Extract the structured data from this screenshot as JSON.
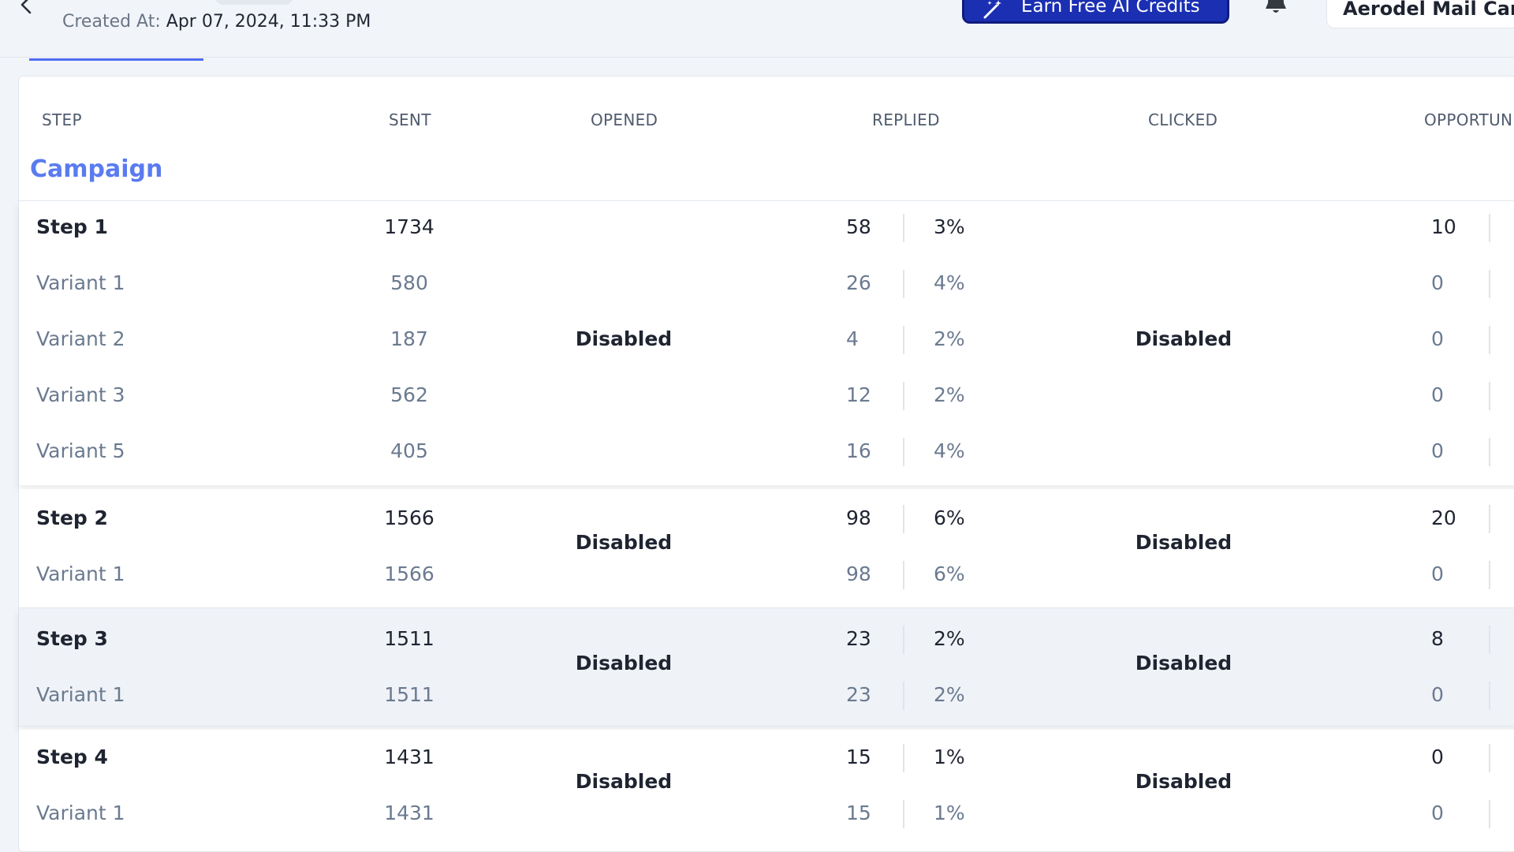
{
  "header": {
    "created_label": "Created At:",
    "created_value": "Apr 07, 2024, 11:33 PM",
    "credits_button": "Earn Free AI Credits",
    "account_name": "Aerodel Mail Cam"
  },
  "table": {
    "columns": [
      "STEP",
      "SENT",
      "OPENED",
      "REPLIED",
      "CLICKED",
      "OPPORTUN"
    ],
    "section_title": "Campaign",
    "groups": [
      {
        "opened": "Disabled",
        "clicked": "Disabled",
        "rows": [
          {
            "type": "step",
            "name": "Step 1",
            "sent": "1734",
            "replied": "58",
            "replied_pct": "3%",
            "opportunities": "10"
          },
          {
            "type": "variant",
            "name": "Variant 1",
            "sent": "580",
            "replied": "26",
            "replied_pct": "4%",
            "opportunities": "0"
          },
          {
            "type": "variant",
            "name": "Variant 2",
            "sent": "187",
            "replied": "4",
            "replied_pct": "2%",
            "opportunities": "0"
          },
          {
            "type": "variant",
            "name": "Variant 3",
            "sent": "562",
            "replied": "12",
            "replied_pct": "2%",
            "opportunities": "0"
          },
          {
            "type": "variant",
            "name": "Variant 5",
            "sent": "405",
            "replied": "16",
            "replied_pct": "4%",
            "opportunities": "0"
          }
        ]
      },
      {
        "opened": "Disabled",
        "clicked": "Disabled",
        "rows": [
          {
            "type": "step",
            "name": "Step 2",
            "sent": "1566",
            "replied": "98",
            "replied_pct": "6%",
            "opportunities": "20"
          },
          {
            "type": "variant",
            "name": "Variant 1",
            "sent": "1566",
            "replied": "98",
            "replied_pct": "6%",
            "opportunities": "0"
          }
        ]
      },
      {
        "opened": "Disabled",
        "clicked": "Disabled",
        "rows": [
          {
            "type": "step",
            "name": "Step 3",
            "sent": "1511",
            "replied": "23",
            "replied_pct": "2%",
            "opportunities": "8"
          },
          {
            "type": "variant",
            "name": "Variant 1",
            "sent": "1511",
            "replied": "23",
            "replied_pct": "2%",
            "opportunities": "0"
          }
        ]
      },
      {
        "opened": "Disabled",
        "clicked": "Disabled",
        "rows": [
          {
            "type": "step",
            "name": "Step 4",
            "sent": "1431",
            "replied": "15",
            "replied_pct": "1%",
            "opportunities": "0"
          },
          {
            "type": "variant",
            "name": "Variant 1",
            "sent": "1431",
            "replied": "15",
            "replied_pct": "1%",
            "opportunities": "0"
          }
        ]
      }
    ]
  },
  "icons": {
    "back": "chevron-left-icon",
    "credits": "magic-wand-icon",
    "notifications": "bell-icon"
  },
  "colors": {
    "accent": "#4d6cf1",
    "section_title": "#5a7bf0",
    "credits_button": "#1b2fb3",
    "variant_text": "#6b7a90"
  }
}
